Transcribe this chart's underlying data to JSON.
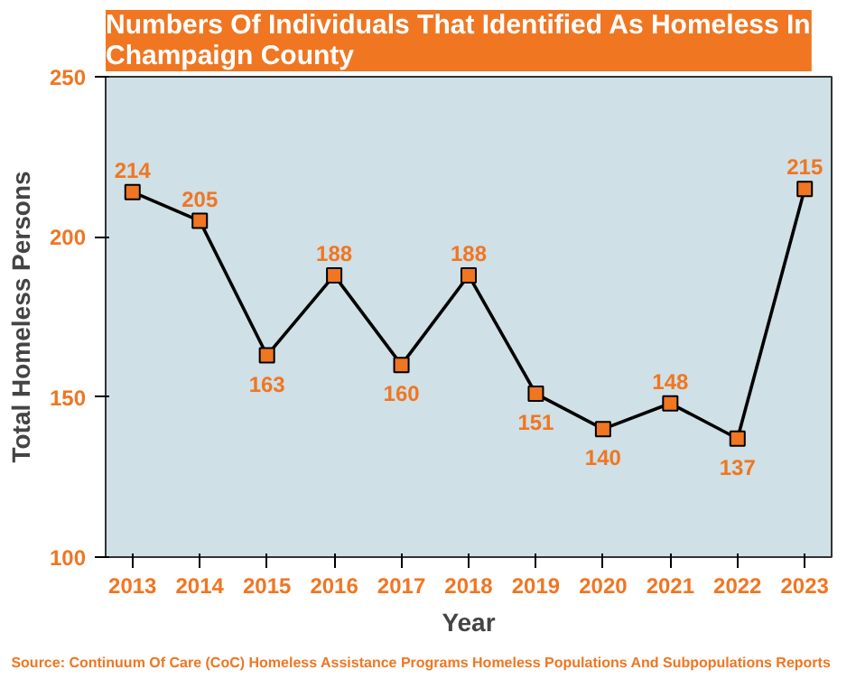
{
  "chart_data": {
    "type": "line",
    "title": "Numbers Of Individuals That Identified As Homeless In\nChampaign County",
    "xlabel": "Year",
    "ylabel": "Total Homeless Persons",
    "x": [
      2013,
      2014,
      2015,
      2016,
      2017,
      2018,
      2019,
      2020,
      2021,
      2022,
      2023
    ],
    "series": [
      {
        "color": "#000000",
        "values": [
          214,
          205,
          163,
          188,
          160,
          188,
          151,
          140,
          148,
          137,
          215
        ]
      }
    ],
    "xlim": [
      2012.6,
      2023.4
    ],
    "xticks": [
      2013,
      2014,
      2015,
      2016,
      2017,
      2018,
      2019,
      2020,
      2021,
      2022,
      2023
    ],
    "ylim": [
      100,
      250
    ],
    "yticks": [
      100,
      150,
      200,
      250
    ],
    "marker": "square",
    "line_style": "solid",
    "data_labels": true,
    "grid": false,
    "annotations": [
      "Source: Continuum Of Care (CoC) Homeless Assistance Programs Homeless Populations And Subpopulations Reports"
    ]
  }
}
